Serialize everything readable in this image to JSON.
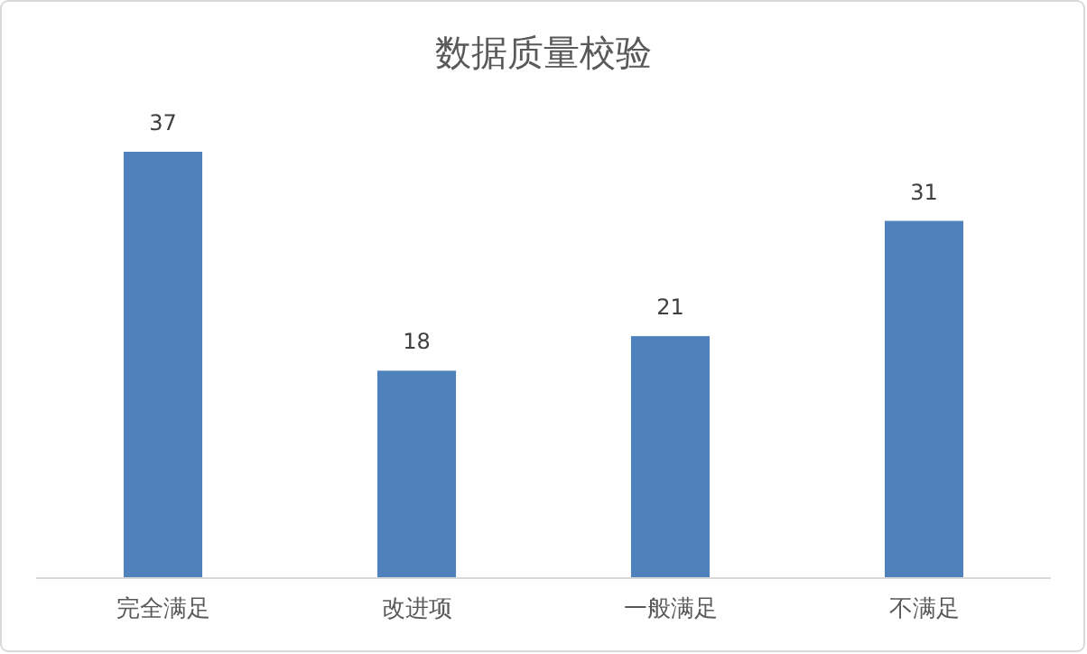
{
  "chart_data": {
    "type": "bar",
    "title": "数据质量校验",
    "categories": [
      "完全满足",
      "改进项",
      "一般满足",
      "不满足"
    ],
    "values": [
      37,
      18,
      21,
      31
    ],
    "color": "#4f81bd",
    "data_labels": true
  }
}
